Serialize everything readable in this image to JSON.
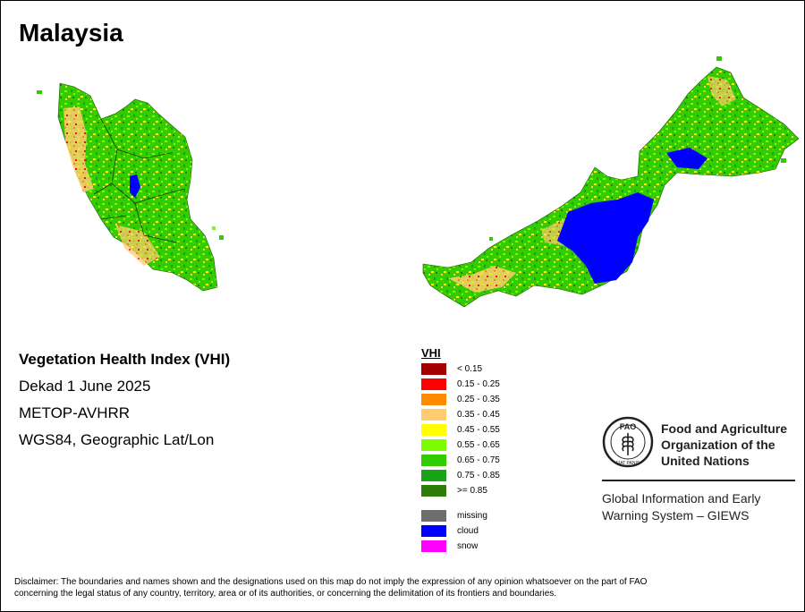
{
  "title": "Malaysia",
  "info": {
    "index_name": "Vegetation Health Index (VHI)",
    "period": "Dekad 1 June 2025",
    "sensor": "METOP-AVHRR",
    "projection": "WGS84, Geographic Lat/Lon"
  },
  "legend": {
    "title": "VHI",
    "classes": [
      {
        "label": "< 0.15",
        "color": "#a50000"
      },
      {
        "label": "0.15 - 0.25",
        "color": "#ff0000"
      },
      {
        "label": "0.25 - 0.35",
        "color": "#ff8c00"
      },
      {
        "label": "0.35 - 0.45",
        "color": "#ffcc70"
      },
      {
        "label": "0.45 - 0.55",
        "color": "#ffff00"
      },
      {
        "label": "0.55 - 0.65",
        "color": "#7cfc00"
      },
      {
        "label": "0.65 - 0.75",
        "color": "#33cc00"
      },
      {
        "label": "0.75 - 0.85",
        "color": "#19a319"
      },
      {
        "label": ">= 0.85",
        "color": "#2e7d0a"
      }
    ],
    "other_classes": [
      {
        "label": "missing",
        "color": "#6e6e6e"
      },
      {
        "label": "cloud",
        "color": "#0000ff"
      },
      {
        "label": "snow",
        "color": "#ff00ff"
      }
    ]
  },
  "organization": {
    "emblem_icon": "fao-emblem-icon",
    "emblem_text": "FAO",
    "emblem_motto": "FIAT PANIS",
    "name_line1": "Food and Agriculture",
    "name_line2": "Organization of the",
    "name_line3": "United Nations",
    "system_line1": "Global Information and Early",
    "system_line2": "Warning System – GIEWS"
  },
  "disclaimer": {
    "line1": "Disclaimer: The boundaries and names shown and the designations used on this map do not imply the expression of any opinion whatsoever on the part of FAO",
    "line2": "concerning the legal status of any country, territory, area or of its authorities, or concerning the delimitation of its frontiers and boundaries."
  }
}
